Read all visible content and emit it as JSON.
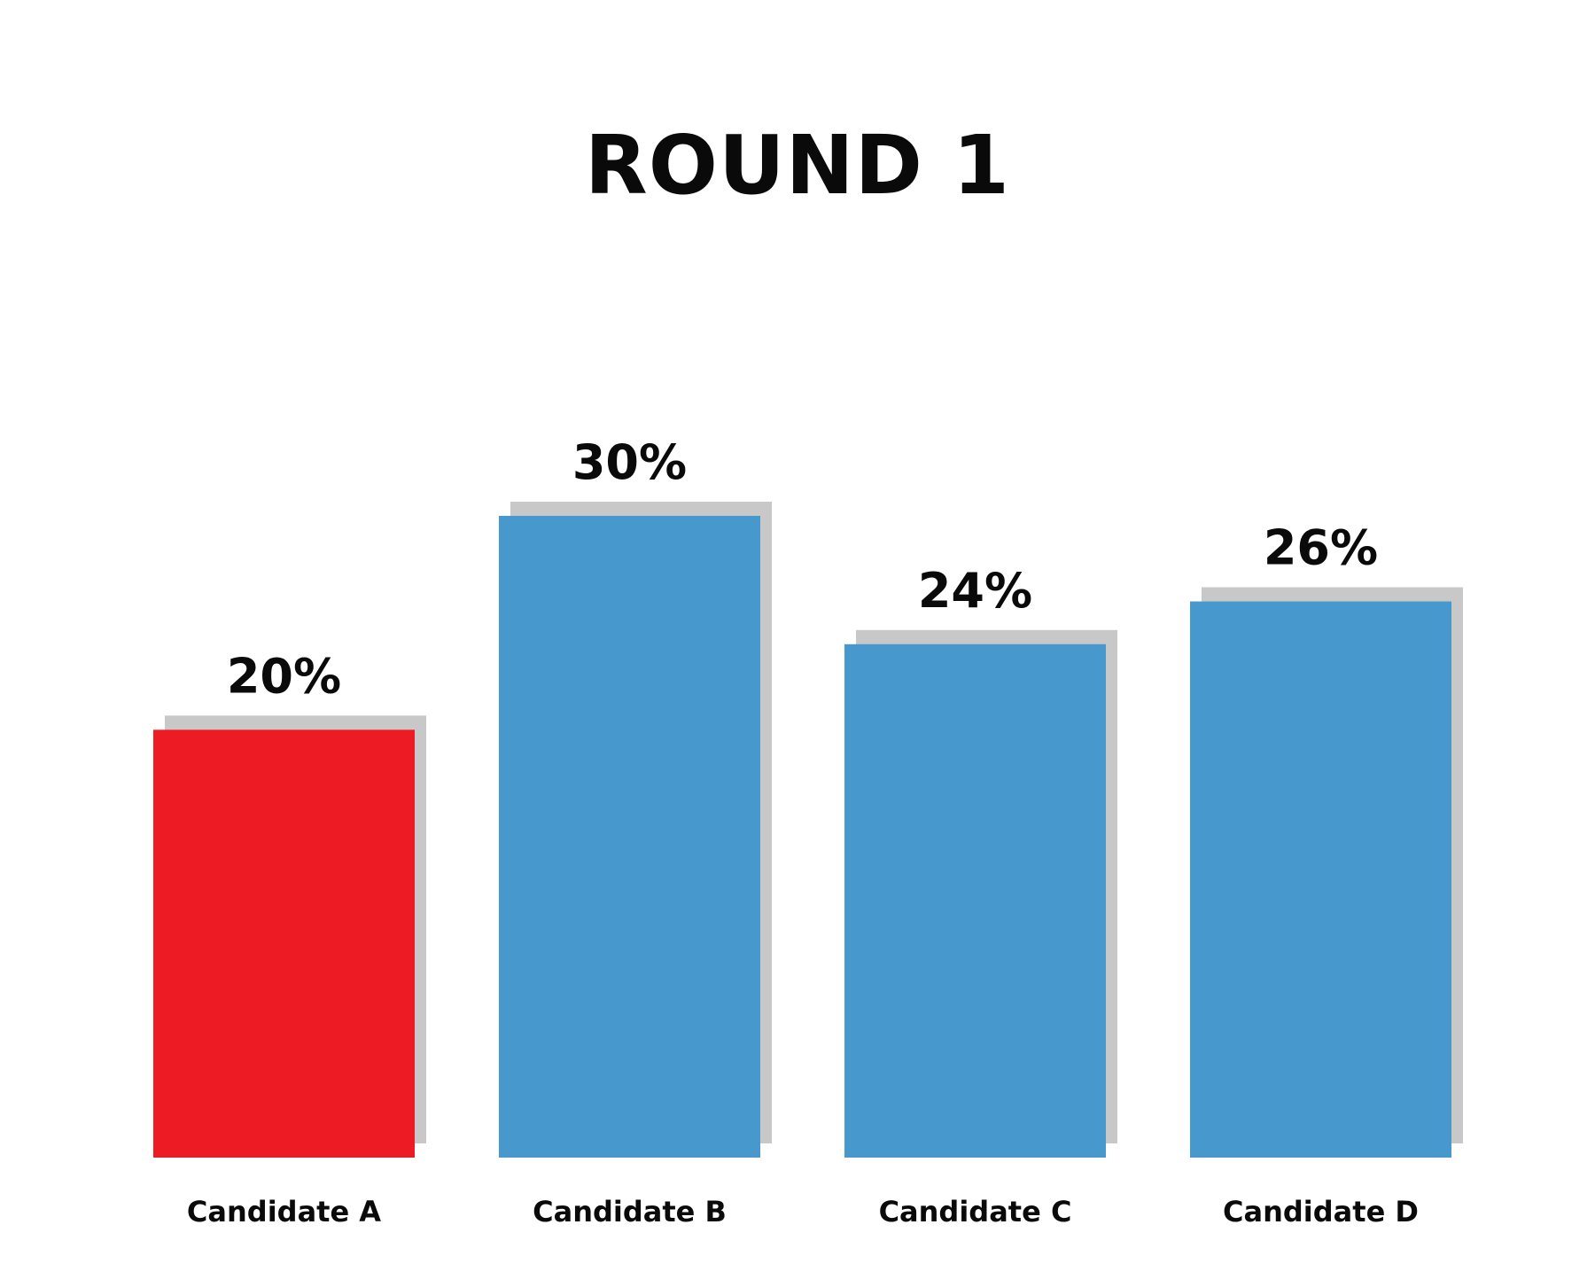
{
  "chart_data": {
    "type": "bar",
    "title": "ROUND 1",
    "categories": [
      "Candidate A",
      "Candidate B",
      "Candidate C",
      "Candidate D"
    ],
    "values": [
      20,
      30,
      24,
      26
    ],
    "value_labels": [
      "20%",
      "30%",
      "24%",
      "26%"
    ],
    "xlabel": "",
    "ylabel": "",
    "ylim": [
      0,
      30
    ],
    "grid": false,
    "legend": "none",
    "colors": {
      "highlight": "#ed1c24",
      "default": "#4698cd",
      "shadow": "#c8c8c8"
    },
    "bar_colors": [
      "highlight",
      "default",
      "default",
      "default"
    ]
  }
}
